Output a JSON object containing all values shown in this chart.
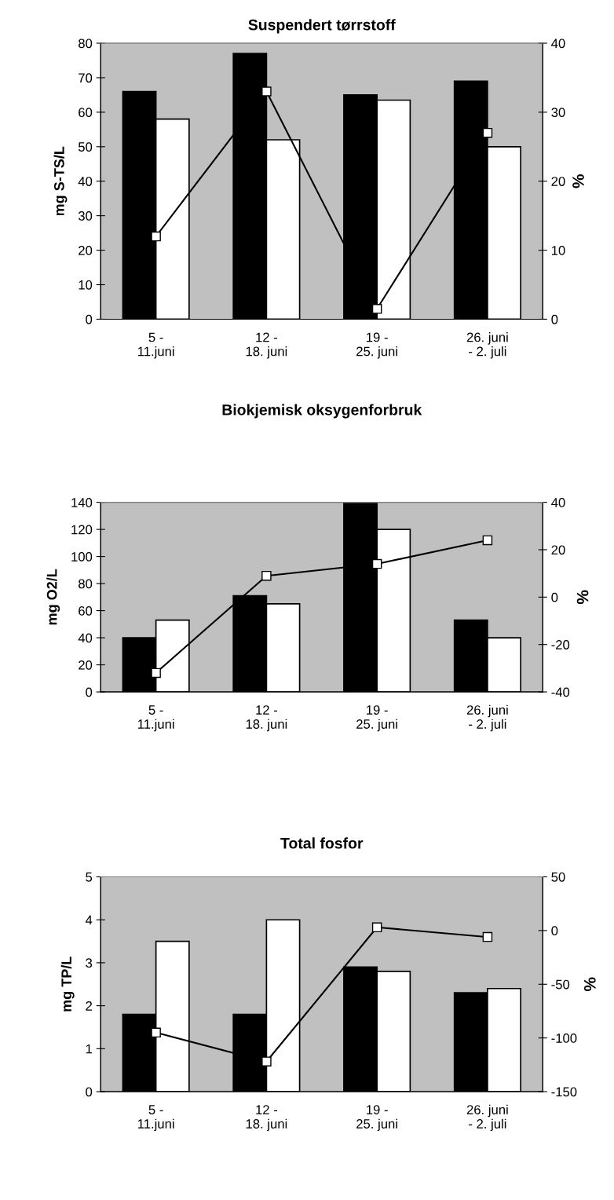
{
  "chart_data": [
    {
      "type": "bar",
      "title": "Suspendert tørrstoff",
      "ylabel": "mg S-TS/L",
      "y2label": "%",
      "categories": [
        "5 -\n11.juni",
        "12 -\n18. juni",
        "19 -\n25. juni",
        "26. juni\n- 2. juli"
      ],
      "series": [
        {
          "color": "#000000",
          "values": [
            66,
            77,
            65,
            69
          ]
        },
        {
          "color": "#ffffff",
          "values": [
            58,
            52,
            63.5,
            50
          ]
        },
        {
          "type": "line",
          "axis": "y2",
          "color": "#000000",
          "marker": "square",
          "values": [
            12,
            33,
            1.5,
            27
          ]
        }
      ],
      "ylim": [
        0,
        80
      ],
      "yticks": [
        0,
        10,
        20,
        30,
        40,
        50,
        60,
        70,
        80
      ],
      "y2lim": [
        0,
        40
      ],
      "y2ticks": [
        0,
        10,
        20,
        30,
        40
      ],
      "grid": false
    },
    {
      "type": "bar",
      "title": "Biokjemisk oksygenforbruk",
      "ylabel": "mg O2/L",
      "y2label": "%",
      "categories": [
        "5 -\n11.juni",
        "12 -\n18. juni",
        "19 -\n25. juni",
        "26. juni\n- 2. juli"
      ],
      "series": [
        {
          "color": "#000000",
          "values": [
            40,
            71,
            140,
            53
          ]
        },
        {
          "color": "#ffffff",
          "values": [
            53,
            65,
            120,
            40
          ]
        },
        {
          "type": "line",
          "axis": "y2",
          "color": "#000000",
          "marker": "square",
          "values": [
            -32,
            9,
            14,
            24
          ]
        }
      ],
      "ylim": [
        0,
        140
      ],
      "yticks": [
        0,
        20,
        40,
        60,
        80,
        100,
        120,
        140
      ],
      "y2lim": [
        -40,
        40
      ],
      "y2ticks": [
        -40,
        -20,
        0,
        20,
        40
      ],
      "grid": false
    },
    {
      "type": "bar",
      "title": "Total fosfor",
      "ylabel": "mg TP/L",
      "y2label": "%",
      "categories": [
        "5 -\n11.juni",
        "12 -\n18. juni",
        "19 -\n25. juni",
        "26. juni\n- 2. juli"
      ],
      "series": [
        {
          "color": "#000000",
          "values": [
            1.8,
            1.8,
            2.9,
            2.3
          ]
        },
        {
          "color": "#ffffff",
          "values": [
            3.5,
            4.0,
            2.8,
            2.4
          ]
        },
        {
          "type": "line",
          "axis": "y2",
          "color": "#000000",
          "marker": "square",
          "values": [
            -95,
            -122,
            3,
            -6
          ]
        }
      ],
      "ylim": [
        0,
        5
      ],
      "yticks": [
        0,
        1,
        2,
        3,
        4,
        5
      ],
      "y2lim": [
        -150,
        50
      ],
      "y2ticks": [
        -150,
        -100,
        -50,
        0,
        50
      ],
      "grid": false
    }
  ]
}
